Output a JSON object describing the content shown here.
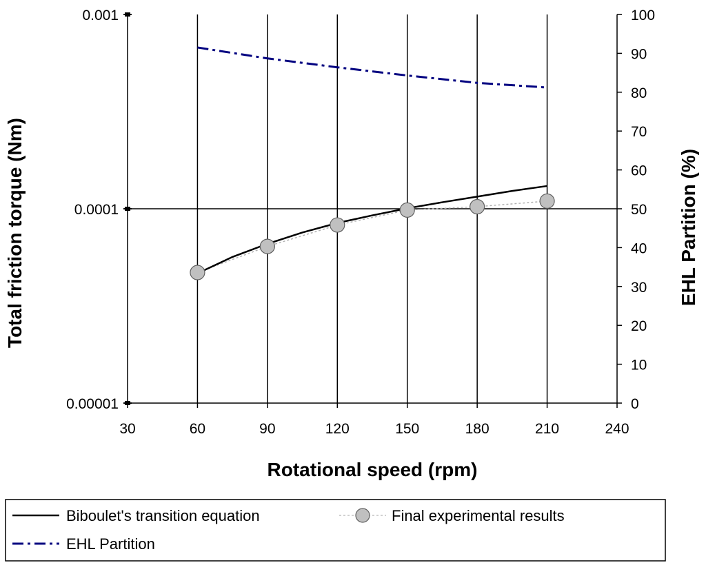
{
  "chart_data": {
    "type": "line",
    "xlabel": "Rotational speed (rpm)",
    "ylabel_left": "Total friction torque (Nm)",
    "ylabel_right": "EHL Partition (%)",
    "x_ticks": [
      "30",
      "60",
      "90",
      "120",
      "150",
      "180",
      "210",
      "240"
    ],
    "xlim": [
      30,
      240
    ],
    "y_left_ticks": [
      "0.001",
      "0.0001",
      "0.00001"
    ],
    "y_left_tick_values": [
      0.001,
      0.0001,
      1e-05
    ],
    "y_left_scale": "log",
    "y_left_lim": [
      1e-05,
      0.001
    ],
    "y_right_ticks": [
      "0",
      "10",
      "20",
      "30",
      "40",
      "50",
      "60",
      "70",
      "80",
      "90",
      "100"
    ],
    "y_right_lim": [
      0,
      100
    ],
    "grid": "vertical at x ticks, horizontal at 0.0001",
    "legend_position": "bottom",
    "series": [
      {
        "name": "Biboulet's transition equation",
        "axis": "left",
        "style": "solid black line",
        "color": "#000000",
        "x": [
          60,
          75,
          90,
          105,
          120,
          135,
          150,
          165,
          180,
          195,
          210
        ],
        "values": [
          4.65e-05,
          5.65e-05,
          6.6e-05,
          7.55e-05,
          8.45e-05,
          9.25e-05,
          0.0001005,
          0.000108,
          0.0001155,
          0.0001235,
          0.000131
        ]
      },
      {
        "name": "Final experimental results",
        "axis": "left",
        "style": "grey circle markers, dotted grey line",
        "color": "#c0c0c0",
        "x": [
          60,
          90,
          120,
          150,
          180,
          210
        ],
        "values": [
          4.7e-05,
          6.4e-05,
          8.25e-05,
          9.85e-05,
          0.0001025,
          0.0001095
        ]
      },
      {
        "name": "EHL Partition",
        "axis": "right",
        "style": "dash-dot navy line",
        "color": "#000080",
        "x": [
          60,
          90,
          120,
          150,
          180,
          210
        ],
        "values": [
          91.5,
          88.7,
          86.4,
          84.3,
          82.4,
          81.2
        ]
      }
    ]
  }
}
